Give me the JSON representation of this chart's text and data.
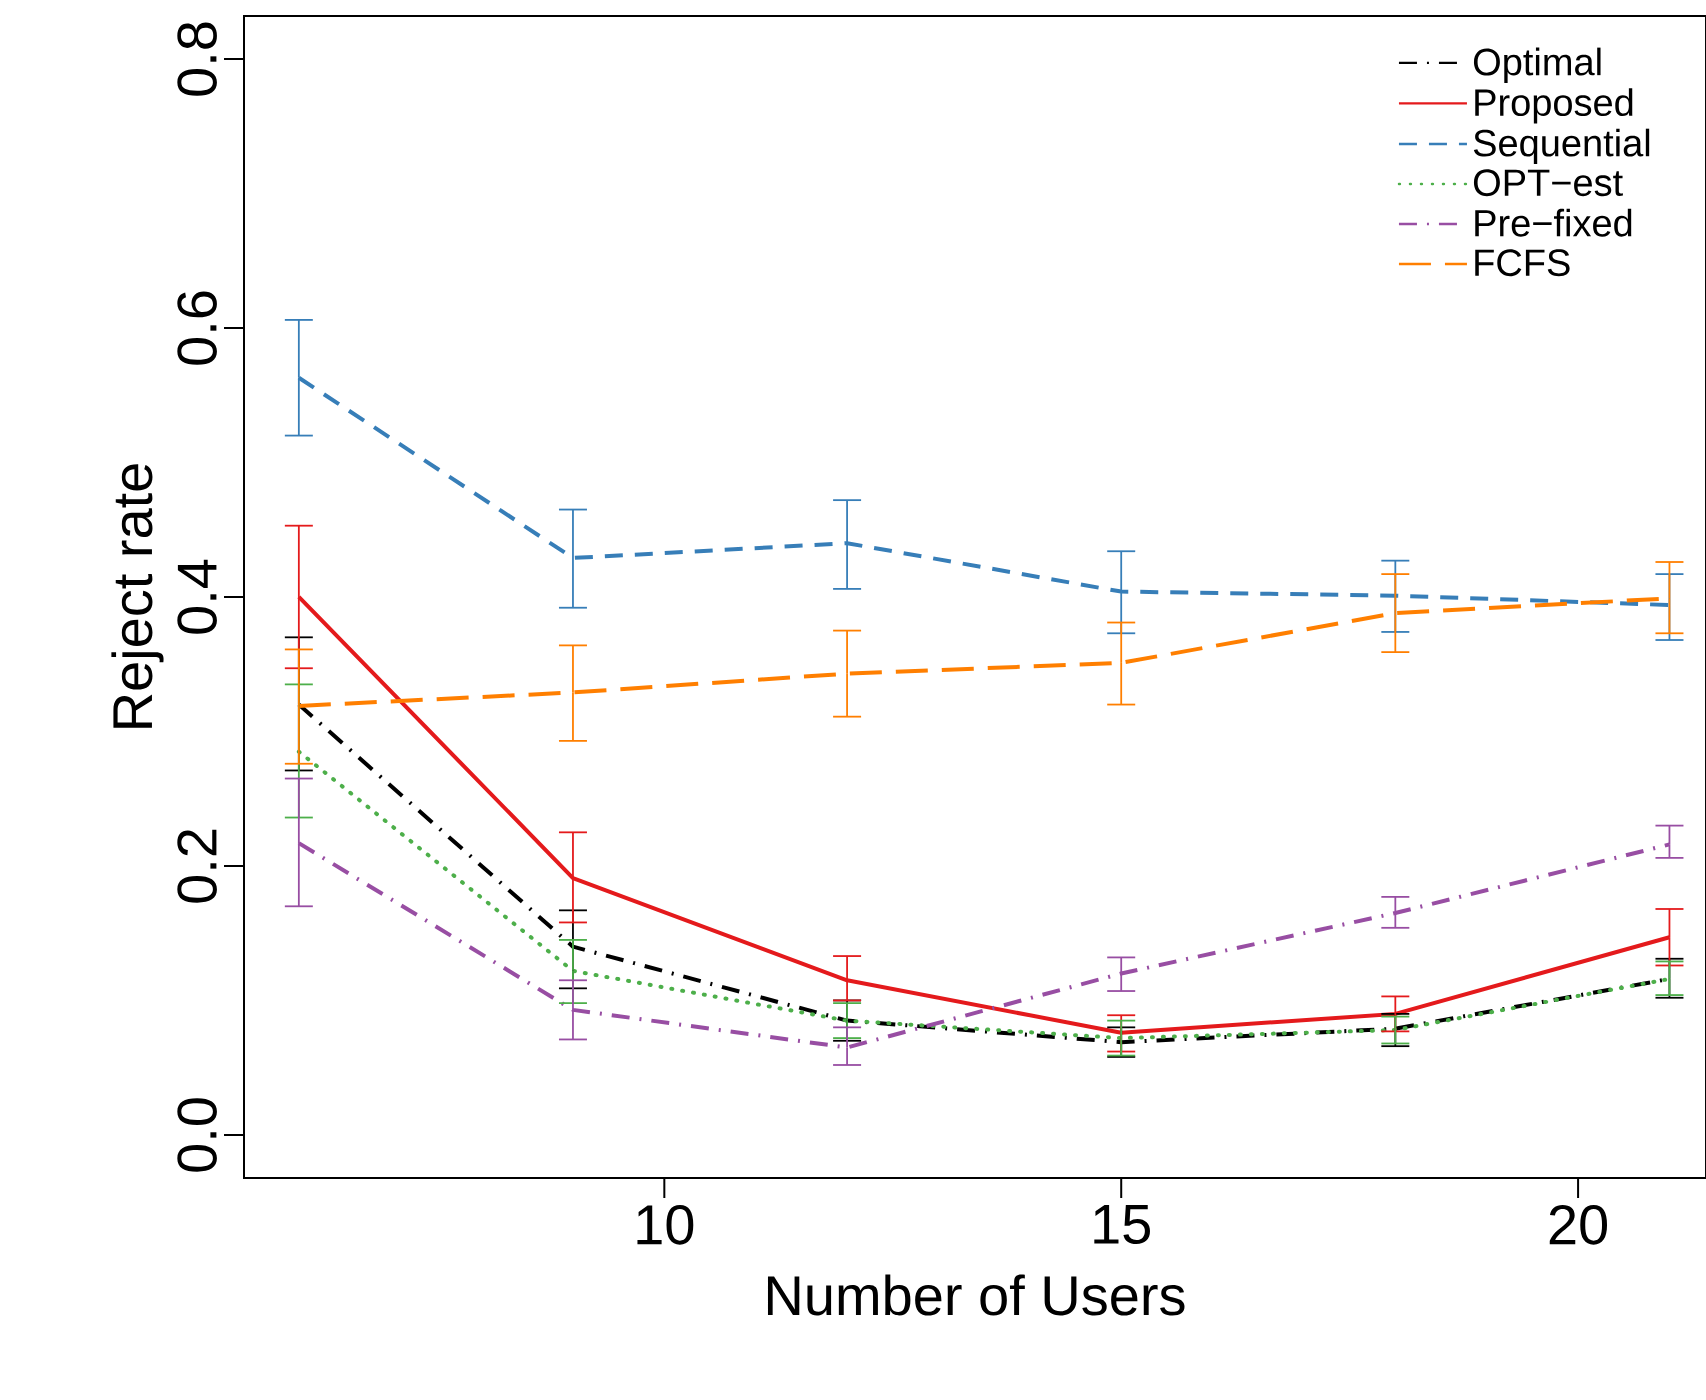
{
  "chart_data": {
    "type": "line",
    "xlabel": "Number of Users",
    "ylabel": "Reject rate",
    "x": [
      6,
      9,
      12,
      15,
      18,
      21
    ],
    "xlim": [
      5.4,
      21.4
    ],
    "xticks": [
      10,
      15,
      20
    ],
    "ylim": [
      -0.032,
      0.832
    ],
    "yticks": [
      {
        "value": 0,
        "label": "0.0"
      },
      0.2,
      0.4,
      0.6,
      0.8
    ],
    "grid": false,
    "legend": "top right",
    "marker": "none",
    "series": [
      {
        "name": "Optimal",
        "color": "#000000",
        "line_style": "dashdot",
        "values": [
          0.32,
          0.14,
          0.085,
          0.069,
          0.079,
          0.116
        ],
        "errors": [
          [
            0.271,
            0.37
          ],
          [
            0.109,
            0.167
          ],
          [
            0.07,
            0.1
          ],
          [
            0.058,
            0.08
          ],
          [
            0.066,
            0.09
          ],
          [
            0.102,
            0.131
          ]
        ]
      },
      {
        "name": "Proposed",
        "color": "#e41a1c",
        "line_style": "solid",
        "values": [
          0.4,
          0.191,
          0.115,
          0.076,
          0.09,
          0.147
        ],
        "errors": [
          [
            0.347,
            0.453
          ],
          [
            0.158,
            0.225
          ],
          [
            0.1,
            0.133
          ],
          [
            0.062,
            0.089
          ],
          [
            0.077,
            0.103
          ],
          [
            0.126,
            0.168
          ]
        ]
      },
      {
        "name": "Sequential",
        "color": "#377eb8",
        "line_style": "dashed",
        "values": [
          0.563,
          0.429,
          0.44,
          0.404,
          0.401,
          0.394
        ],
        "errors": [
          [
            0.52,
            0.606
          ],
          [
            0.392,
            0.465
          ],
          [
            0.406,
            0.472
          ],
          [
            0.373,
            0.434
          ],
          [
            0.374,
            0.427
          ],
          [
            0.368,
            0.417
          ]
        ]
      },
      {
        "name": "OPT−est",
        "color": "#4daf4a",
        "line_style": "dotted",
        "values": [
          0.285,
          0.122,
          0.085,
          0.072,
          0.078,
          0.116
        ],
        "errors": [
          [
            0.236,
            0.335
          ],
          [
            0.098,
            0.145
          ],
          [
            0.072,
            0.098
          ],
          [
            0.059,
            0.085
          ],
          [
            0.068,
            0.088
          ],
          [
            0.104,
            0.129
          ]
        ]
      },
      {
        "name": "Pre−fixed",
        "color": "#984ea3",
        "line_style": "dashdot",
        "values": [
          0.217,
          0.093,
          0.065,
          0.12,
          0.165,
          0.216
        ],
        "errors": [
          [
            0.17,
            0.265
          ],
          [
            0.071,
            0.115
          ],
          [
            0.052,
            0.08
          ],
          [
            0.107,
            0.132
          ],
          [
            0.154,
            0.177
          ],
          [
            0.206,
            0.23
          ]
        ]
      },
      {
        "name": "FCFS",
        "color": "#ff7f00",
        "line_style": "longdash",
        "values": [
          0.319,
          0.329,
          0.343,
          0.351,
          0.388,
          0.399
        ],
        "errors": [
          [
            0.276,
            0.361
          ],
          [
            0.293,
            0.364
          ],
          [
            0.311,
            0.375
          ],
          [
            0.32,
            0.381
          ],
          [
            0.359,
            0.417
          ],
          [
            0.373,
            0.426
          ]
        ]
      }
    ]
  }
}
